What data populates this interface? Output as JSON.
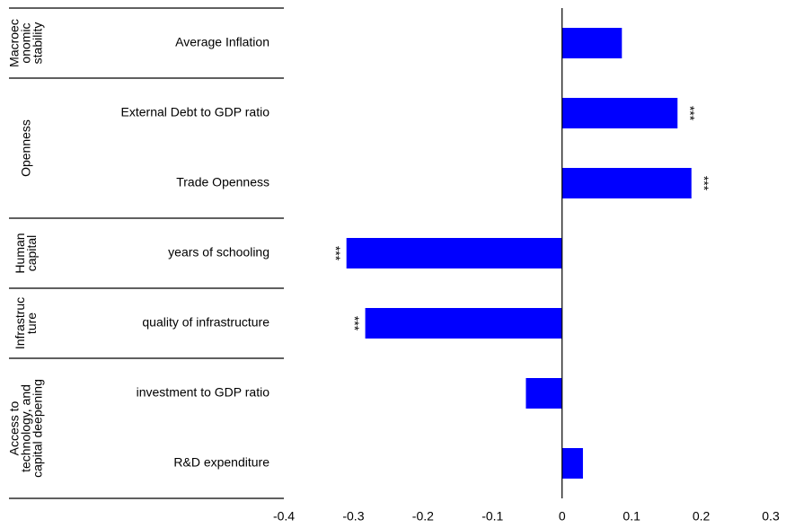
{
  "chart_data": {
    "type": "bar",
    "orientation": "horizontal",
    "color": "#0000ff",
    "xlim": [
      -0.4,
      0.3
    ],
    "xticks": [
      -0.4,
      -0.3,
      -0.2,
      -0.1,
      0,
      0.1,
      0.2,
      0.3
    ],
    "groups": [
      {
        "label_lines": [
          "Macroec",
          "onomic",
          "stability"
        ],
        "categories": [
          "Average Inflation"
        ],
        "values": [
          0.086
        ],
        "significance": [
          null
        ]
      },
      {
        "label_lines": [
          "Openness"
        ],
        "categories": [
          "External Debt to GDP ratio",
          "Trade Openness"
        ],
        "values": [
          0.166,
          0.186
        ],
        "significance": [
          "***",
          "***"
        ]
      },
      {
        "label_lines": [
          "Human",
          "capital"
        ],
        "categories": [
          "years of schooling"
        ],
        "values": [
          -0.31
        ],
        "significance": [
          "***"
        ]
      },
      {
        "label_lines": [
          "Infrastruc",
          "ture"
        ],
        "categories": [
          "quality of infrastructure"
        ],
        "values": [
          -0.283
        ],
        "significance": [
          "***"
        ]
      },
      {
        "label_lines": [
          "Access to",
          "technology, and",
          "capital deepening"
        ],
        "categories": [
          "investment to GDP ratio",
          "R&D expenditure"
        ],
        "values": [
          -0.052,
          0.03
        ],
        "significance": [
          null,
          null
        ]
      }
    ]
  }
}
